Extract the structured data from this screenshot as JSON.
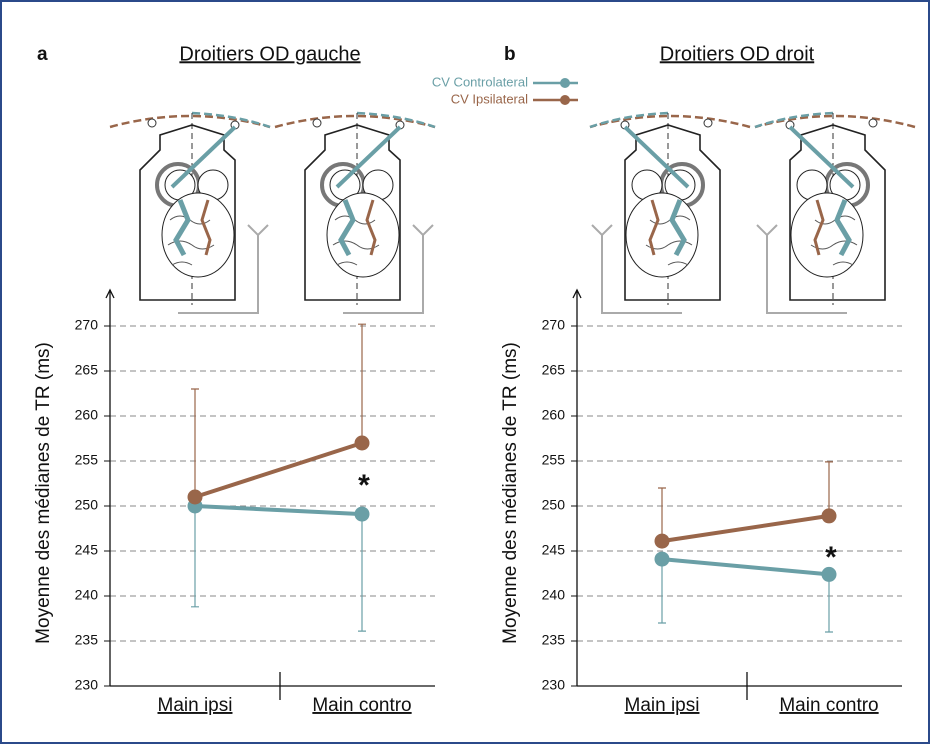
{
  "chart_data": [
    {
      "type": "line",
      "panel": "a",
      "title": "Droitiers OD gauche",
      "y_label": "Moyenne des médianes de TR (ms)",
      "categories": [
        "Main ipsi",
        "Main contro"
      ],
      "series": [
        {
          "name": "CV Controlateral",
          "color": "#6a9fa6",
          "values": [
            250,
            249.1
          ],
          "errors": [
            11.2,
            13
          ],
          "error_direction": "down"
        },
        {
          "name": "CV Ipsilateral",
          "color": "#99664a",
          "values": [
            251,
            257
          ],
          "errors": [
            12,
            13.2
          ],
          "error_direction": "up"
        }
      ],
      "annotations": [
        {
          "text": "*",
          "y": 253
        }
      ],
      "ylim": [
        230,
        274
      ],
      "yticks": [
        230,
        235,
        240,
        245,
        250,
        255,
        260,
        265,
        270
      ],
      "grid": true
    },
    {
      "type": "line",
      "panel": "b",
      "title": "Droitiers OD droit",
      "y_label": "Moyenne des médianes de TR (ms)",
      "categories": [
        "Main ipsi",
        "Main contro"
      ],
      "series": [
        {
          "color": "#6a9fa6",
          "values": [
            244.1,
            242.4
          ],
          "errors": [
            7.1,
            6.4
          ],
          "error_direction": "down"
        },
        {
          "color": "#99664a",
          "values": [
            246.1,
            248.9
          ],
          "errors": [
            5.9,
            6
          ],
          "error_direction": "up"
        }
      ],
      "annotations": [
        {
          "text": "*",
          "y": 245
        }
      ],
      "ylim": [
        230,
        274
      ],
      "yticks": [
        230,
        235,
        240,
        245,
        250,
        255,
        260,
        265,
        270
      ],
      "grid": true
    }
  ]
}
